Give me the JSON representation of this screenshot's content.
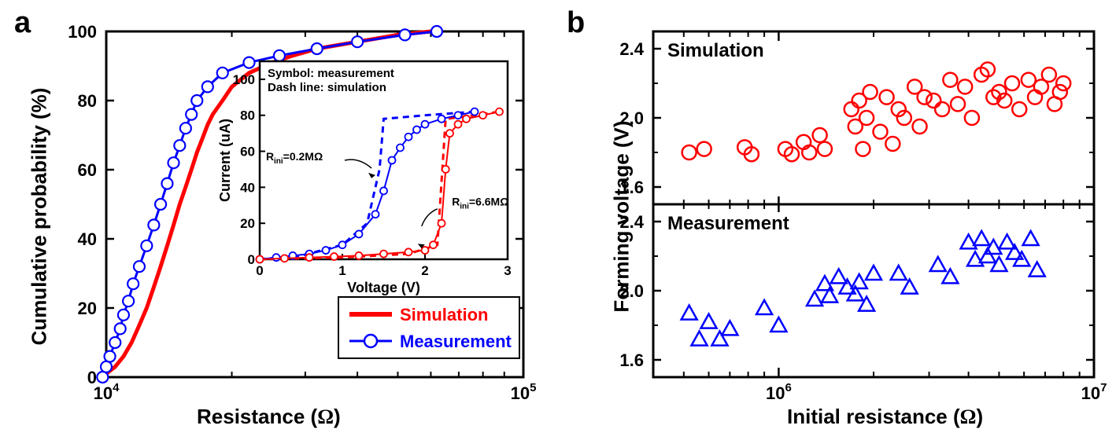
{
  "panelA": {
    "label": "a",
    "type": "line+scatter (CDF)",
    "xlabel": "Resistance (Ω)",
    "ylabel": "Cumulative probability (%)",
    "xscale": "log",
    "yscale": "linear",
    "xlim": [
      10000,
      100000
    ],
    "ylim": [
      0,
      100
    ],
    "xticks": [
      10000,
      100000
    ],
    "xtick_labels": [
      "10⁴",
      "10⁵"
    ],
    "yticks": [
      0,
      20,
      40,
      60,
      80,
      100
    ],
    "axis_fontsize": 26,
    "tick_fontsize": 22,
    "axis_color": "#000000",
    "background_color": "#ffffff",
    "series": {
      "simulation": {
        "label": "Simulation",
        "color": "#ff0000",
        "style": "thick-line",
        "line_width": 5,
        "data": [
          [
            10000,
            1
          ],
          [
            10500,
            3
          ],
          [
            11000,
            6
          ],
          [
            11500,
            10
          ],
          [
            12000,
            15
          ],
          [
            12500,
            20
          ],
          [
            13000,
            26
          ],
          [
            13500,
            32
          ],
          [
            14000,
            38
          ],
          [
            14500,
            44
          ],
          [
            15000,
            50
          ],
          [
            15500,
            55
          ],
          [
            16000,
            60
          ],
          [
            16500,
            65
          ],
          [
            17000,
            69
          ],
          [
            17500,
            73
          ],
          [
            18000,
            76
          ],
          [
            19000,
            80
          ],
          [
            20000,
            84
          ],
          [
            22000,
            88
          ],
          [
            25000,
            91
          ],
          [
            28000,
            93
          ],
          [
            32000,
            95
          ],
          [
            40000,
            97
          ],
          [
            50000,
            99
          ],
          [
            60000,
            100
          ]
        ]
      },
      "measurement": {
        "label": "Measurement",
        "color": "#0000ff",
        "style": "line-open-circles",
        "line_width": 3,
        "marker": "circle-open",
        "marker_size": 7,
        "data": [
          [
            9800,
            0
          ],
          [
            10000,
            3
          ],
          [
            10200,
            6
          ],
          [
            10500,
            10
          ],
          [
            10800,
            14
          ],
          [
            11000,
            18
          ],
          [
            11300,
            22
          ],
          [
            11600,
            27
          ],
          [
            12000,
            32
          ],
          [
            12500,
            38
          ],
          [
            13000,
            44
          ],
          [
            13500,
            50
          ],
          [
            14000,
            56
          ],
          [
            14500,
            62
          ],
          [
            15000,
            67
          ],
          [
            15500,
            72
          ],
          [
            16000,
            76
          ],
          [
            16500,
            80
          ],
          [
            17500,
            84
          ],
          [
            19000,
            88
          ],
          [
            22000,
            91
          ],
          [
            26000,
            93
          ],
          [
            32000,
            95
          ],
          [
            40000,
            97
          ],
          [
            52000,
            99
          ],
          [
            62000,
            100
          ]
        ]
      }
    },
    "legend": {
      "position": "lower-right",
      "entries": [
        "Simulation",
        "Measurement"
      ]
    },
    "inset": {
      "title_lines": [
        "Symbol: measurement",
        "Dash line: simulation"
      ],
      "xlabel": "Voltage (V)",
      "ylabel": "Current (uA)",
      "xlim": [
        0,
        3
      ],
      "ylim": [
        0,
        110
      ],
      "xticks": [
        0,
        1,
        2,
        3
      ],
      "yticks": [
        0,
        20,
        40,
        60,
        80,
        100
      ],
      "annotations": {
        "blue": "Rini=0.2MΩ",
        "red": "Rini=6.6MΩ"
      },
      "series": {
        "blue_meas": {
          "color": "#0000ff",
          "marker": "circle-open",
          "data": [
            [
              0,
              0
            ],
            [
              0.2,
              1
            ],
            [
              0.4,
              2
            ],
            [
              0.6,
              3
            ],
            [
              0.8,
              5
            ],
            [
              1.0,
              8
            ],
            [
              1.2,
              14
            ],
            [
              1.4,
              25
            ],
            [
              1.5,
              38
            ],
            [
              1.6,
              55
            ],
            [
              1.7,
              62
            ],
            [
              1.8,
              68
            ],
            [
              1.9,
              72
            ],
            [
              2.0,
              75
            ],
            [
              2.2,
              78
            ],
            [
              2.4,
              80
            ],
            [
              2.6,
              82
            ]
          ]
        },
        "blue_sim": {
          "color": "#0000ff",
          "dash": true,
          "data": [
            [
              0,
              0
            ],
            [
              0.5,
              2
            ],
            [
              1.0,
              8
            ],
            [
              1.3,
              20
            ],
            [
              1.45,
              50
            ],
            [
              1.5,
              78
            ],
            [
              2.0,
              80
            ],
            [
              2.6,
              82
            ]
          ]
        },
        "red_meas": {
          "color": "#ff0000",
          "marker": "circle-open",
          "data": [
            [
              0,
              0
            ],
            [
              0.3,
              0.5
            ],
            [
              0.6,
              1
            ],
            [
              0.9,
              1.5
            ],
            [
              1.2,
              2
            ],
            [
              1.5,
              3
            ],
            [
              1.8,
              4
            ],
            [
              2.0,
              5
            ],
            [
              2.1,
              8
            ],
            [
              2.2,
              20
            ],
            [
              2.25,
              50
            ],
            [
              2.3,
              70
            ],
            [
              2.4,
              75
            ],
            [
              2.5,
              78
            ],
            [
              2.7,
              80
            ],
            [
              2.9,
              82
            ]
          ]
        },
        "red_sim": {
          "color": "#ff0000",
          "dash": true,
          "data": [
            [
              0,
              0
            ],
            [
              1.0,
              1
            ],
            [
              1.8,
              3
            ],
            [
              2.15,
              8
            ],
            [
              2.25,
              78
            ],
            [
              2.6,
              80
            ],
            [
              2.9,
              82
            ]
          ]
        }
      }
    }
  },
  "panelB": {
    "label": "b",
    "type": "scatter (two stacked panels)",
    "xlabel": "Initial resistance (Ω)",
    "ylabel": "Forming voltage (V)",
    "xscale": "log",
    "yscale": "linear",
    "xlim": [
      400000,
      10000000
    ],
    "ylim": [
      1.5,
      2.5
    ],
    "xticks": [
      1000000,
      10000000
    ],
    "xtick_labels": [
      "10⁶",
      "10⁷"
    ],
    "yticks": [
      1.6,
      2.0,
      2.4
    ],
    "axis_fontsize": 26,
    "tick_fontsize": 22,
    "top": {
      "label": "Simulation",
      "color": "#ff0000",
      "marker": "circle-open",
      "marker_size": 9,
      "data": [
        [
          520000,
          1.8
        ],
        [
          580000,
          1.82
        ],
        [
          780000,
          1.83
        ],
        [
          820000,
          1.79
        ],
        [
          1050000,
          1.82
        ],
        [
          1100000,
          1.79
        ],
        [
          1200000,
          1.86
        ],
        [
          1250000,
          1.8
        ],
        [
          1350000,
          1.9
        ],
        [
          1400000,
          1.82
        ],
        [
          1700000,
          2.05
        ],
        [
          1750000,
          1.95
        ],
        [
          1800000,
          2.1
        ],
        [
          1850000,
          1.82
        ],
        [
          1900000,
          2.0
        ],
        [
          1950000,
          2.15
        ],
        [
          2100000,
          1.92
        ],
        [
          2200000,
          2.12
        ],
        [
          2300000,
          1.85
        ],
        [
          2400000,
          2.05
        ],
        [
          2500000,
          2.0
        ],
        [
          2700000,
          2.18
        ],
        [
          2800000,
          1.95
        ],
        [
          2900000,
          2.12
        ],
        [
          3100000,
          2.1
        ],
        [
          3300000,
          2.05
        ],
        [
          3500000,
          2.22
        ],
        [
          3700000,
          2.08
        ],
        [
          3900000,
          2.18
        ],
        [
          4100000,
          2.0
        ],
        [
          4400000,
          2.25
        ],
        [
          4600000,
          2.28
        ],
        [
          4800000,
          2.12
        ],
        [
          5000000,
          2.15
        ],
        [
          5200000,
          2.1
        ],
        [
          5500000,
          2.2
        ],
        [
          5800000,
          2.05
        ],
        [
          6200000,
          2.22
        ],
        [
          6500000,
          2.12
        ],
        [
          6800000,
          2.18
        ],
        [
          7200000,
          2.25
        ],
        [
          7500000,
          2.08
        ],
        [
          7800000,
          2.15
        ],
        [
          8000000,
          2.2
        ]
      ]
    },
    "bottom": {
      "label": "Measurement",
      "color": "#0000ff",
      "marker": "triangle-open",
      "marker_size": 10,
      "data": [
        [
          520000,
          1.87
        ],
        [
          560000,
          1.72
        ],
        [
          600000,
          1.82
        ],
        [
          650000,
          1.72
        ],
        [
          700000,
          1.78
        ],
        [
          900000,
          1.9
        ],
        [
          1000000,
          1.8
        ],
        [
          1300000,
          1.95
        ],
        [
          1400000,
          2.04
        ],
        [
          1450000,
          1.97
        ],
        [
          1550000,
          2.08
        ],
        [
          1650000,
          2.02
        ],
        [
          1750000,
          1.98
        ],
        [
          1800000,
          2.05
        ],
        [
          1900000,
          1.92
        ],
        [
          2000000,
          2.1
        ],
        [
          2400000,
          2.1
        ],
        [
          2600000,
          2.02
        ],
        [
          3200000,
          2.15
        ],
        [
          3500000,
          2.08
        ],
        [
          4000000,
          2.28
        ],
        [
          4200000,
          2.18
        ],
        [
          4400000,
          2.3
        ],
        [
          4600000,
          2.2
        ],
        [
          4800000,
          2.25
        ],
        [
          5000000,
          2.15
        ],
        [
          5300000,
          2.28
        ],
        [
          5600000,
          2.22
        ],
        [
          5900000,
          2.18
        ],
        [
          6300000,
          2.3
        ],
        [
          6600000,
          2.12
        ]
      ]
    }
  }
}
